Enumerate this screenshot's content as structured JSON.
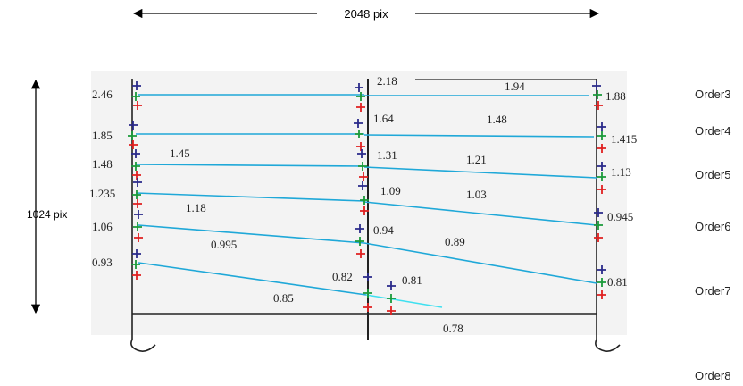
{
  "dimensions": {
    "width_label": "2048 pix",
    "height_label": "1024 pix"
  },
  "orders": [
    "Order3",
    "Order4",
    "Order5",
    "Order6",
    "Order7",
    "Order8"
  ],
  "left_values": [
    "2.46",
    "1.85",
    "1.48",
    "1.235",
    "1.06",
    "0.93"
  ],
  "right_values": [
    "1.88",
    "1.415",
    "1.13",
    "0.945",
    "0.81"
  ],
  "center_values": [
    "2.18",
    "1.64",
    "1.31",
    "1.09",
    "0.94",
    "0.82",
    "0.81",
    "0.78"
  ],
  "segment_values": [
    "1.94",
    "1.48",
    "1.45",
    "1.21",
    "1.18",
    "1.03",
    "0.995",
    "0.89",
    "0.85"
  ],
  "colors": {
    "order_line": "#1fa8d8",
    "frame": "#222222",
    "plot_bg": "#f3f3f3",
    "marker_blue": "#2a2a8a",
    "marker_green": "#1a9a3a",
    "marker_red": "#e02020"
  }
}
